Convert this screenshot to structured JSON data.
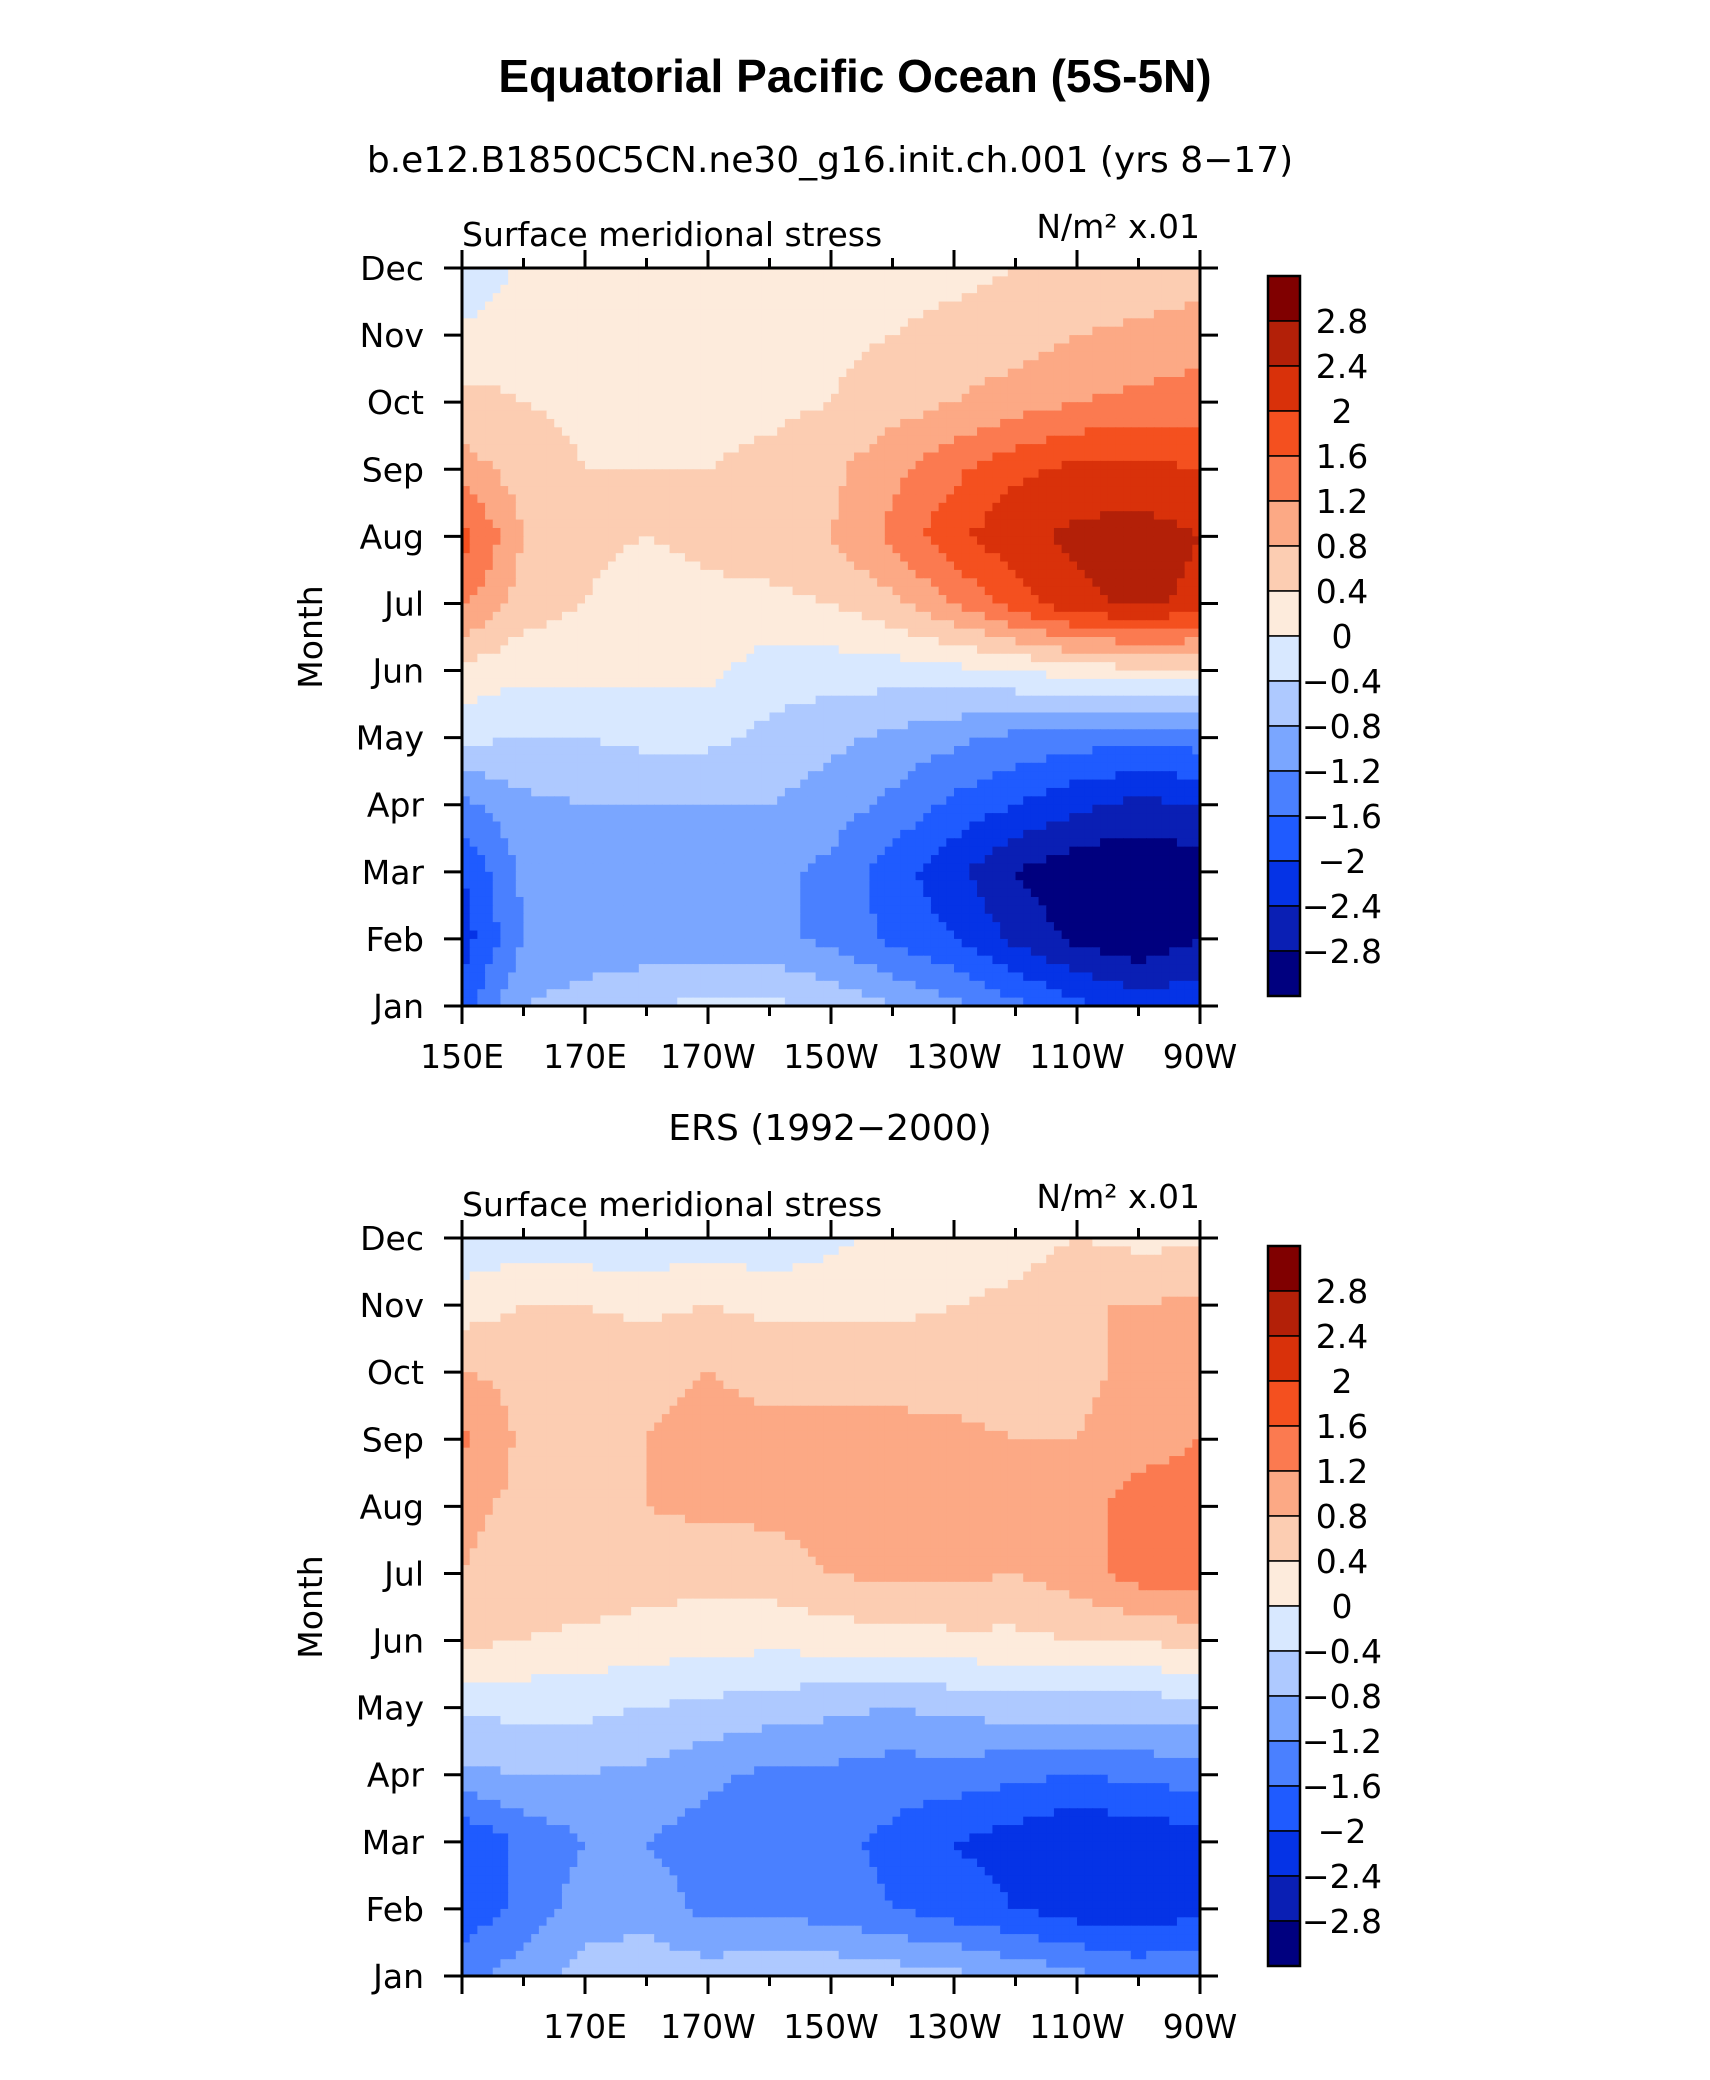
{
  "figure": {
    "title": "Equatorial Pacific Ocean (5S-5N)",
    "model_subtitle": "b.e12.B1850C5CN.ne30_g16.init.ch.001 (yrs 8−17)",
    "obs_subtitle": "ERS (1992−2000)"
  },
  "chart_data": [
    {
      "type": "heatmap",
      "title": "b.e12.B1850C5CN.ne30_g16.init.ch.001 (yrs 8−17)",
      "left_label": "Surface meridional stress",
      "units_label": "N/m² x.01",
      "ylabel": "Month",
      "yticks": [
        "Jan",
        "Feb",
        "Mar",
        "Apr",
        "May",
        "Jun",
        "Jul",
        "Aug",
        "Sep",
        "Oct",
        "Nov",
        "Dec"
      ],
      "xticks": [
        "150E",
        "170E",
        "170W",
        "150W",
        "130W",
        "110W",
        "90W"
      ],
      "xlim_deg_east": [
        150,
        270
      ],
      "levels": [
        -2.8,
        -2.4,
        -2,
        -1.6,
        -1.2,
        -0.8,
        -0.4,
        0,
        0.4,
        0.8,
        1.2,
        1.6,
        2,
        2.4,
        2.8
      ],
      "colorbar_labels": [
        "2.8",
        "2.4",
        "2",
        "1.6",
        "1.2",
        "0.8",
        "0.4",
        "0",
        "−0.4",
        "−0.8",
        "−1.2",
        "−1.6",
        "−2",
        "−2.4",
        "−2.8"
      ],
      "colors": [
        "#00007f",
        "#0a1fb4",
        "#0533e6",
        "#1f5bff",
        "#4a80ff",
        "#7aa6ff",
        "#aec9ff",
        "#d8e8ff",
        "#fdebdc",
        "#fccdb2",
        "#fca985",
        "#fb7a50",
        "#f4501f",
        "#d9310a",
        "#b32008",
        "#800000"
      ],
      "lon": [
        150,
        160,
        170,
        180,
        190,
        200,
        210,
        220,
        230,
        240,
        250,
        260,
        270
      ],
      "month": [
        1,
        2,
        3,
        4,
        5,
        6,
        7,
        8,
        9,
        10,
        11,
        12
      ],
      "values": [
        [
          -1.8,
          -0.8,
          -0.6,
          -0.4,
          -0.3,
          -0.3,
          -0.5,
          -0.8,
          -1.1,
          -1.5,
          -1.9,
          -2.2,
          -2.1
        ],
        [
          -2.2,
          -1.2,
          -1.1,
          -1.1,
          -1.1,
          -1.1,
          -1.3,
          -1.7,
          -2.0,
          -2.5,
          -2.9,
          -3.1,
          -2.8
        ],
        [
          -2.0,
          -1.1,
          -1.0,
          -1.0,
          -1.0,
          -1.1,
          -1.3,
          -1.8,
          -2.3,
          -2.8,
          -3.1,
          -3.2,
          -3.0
        ],
        [
          -1.3,
          -0.9,
          -0.8,
          -0.8,
          -0.8,
          -0.8,
          -1.0,
          -1.3,
          -1.7,
          -2.0,
          -2.3,
          -2.5,
          -2.4
        ],
        [
          -0.3,
          -0.4,
          -0.4,
          -0.3,
          -0.3,
          -0.5,
          -0.7,
          -0.9,
          -1.1,
          -1.3,
          -1.4,
          -1.5,
          -1.4
        ],
        [
          0.3,
          0.1,
          0.1,
          0.1,
          0.1,
          -0.2,
          -0.2,
          -0.2,
          -0.1,
          0.0,
          0.2,
          0.3,
          0.3
        ],
        [
          1.3,
          0.6,
          0.4,
          0.2,
          0.3,
          0.3,
          0.4,
          0.7,
          1.2,
          1.8,
          2.3,
          2.5,
          2.3
        ],
        [
          1.8,
          0.8,
          0.5,
          0.4,
          0.5,
          0.6,
          0.8,
          1.3,
          1.9,
          2.3,
          2.5,
          2.6,
          2.4
        ],
        [
          1.0,
          0.6,
          0.4,
          0.4,
          0.4,
          0.5,
          0.7,
          1.1,
          1.5,
          1.9,
          2.1,
          2.1,
          2.0
        ],
        [
          0.5,
          0.4,
          0.3,
          0.3,
          0.3,
          0.3,
          0.4,
          0.6,
          0.8,
          1.0,
          1.2,
          1.3,
          1.4
        ],
        [
          0.1,
          0.3,
          0.3,
          0.3,
          0.3,
          0.3,
          0.3,
          0.4,
          0.5,
          0.6,
          0.8,
          0.9,
          1.0
        ],
        [
          -0.4,
          0.1,
          0.2,
          0.2,
          0.2,
          0.3,
          0.3,
          0.3,
          0.3,
          0.4,
          0.5,
          0.5,
          0.6
        ]
      ]
    },
    {
      "type": "heatmap",
      "title": "ERS (1992−2000)",
      "left_label": "Surface meridional stress",
      "units_label": "N/m² x.01",
      "ylabel": "Month",
      "yticks": [
        "Jan",
        "Feb",
        "Mar",
        "Apr",
        "May",
        "Jun",
        "Jul",
        "Aug",
        "Sep",
        "Oct",
        "Nov",
        "Dec"
      ],
      "xticks": [
        "170E",
        "170W",
        "150W",
        "130W",
        "110W",
        "90W"
      ],
      "xlim_deg_east": [
        150,
        270
      ],
      "levels": [
        -2.8,
        -2.4,
        -2,
        -1.6,
        -1.2,
        -0.8,
        -0.4,
        0,
        0.4,
        0.8,
        1.2,
        1.6,
        2,
        2.4,
        2.8
      ],
      "colorbar_labels": [
        "2.8",
        "2.4",
        "2",
        "1.6",
        "1.2",
        "0.8",
        "0.4",
        "0",
        "−0.4",
        "−0.8",
        "−1.2",
        "−1.6",
        "−2",
        "−2.4",
        "−2.8"
      ],
      "colors": [
        "#00007f",
        "#0a1fb4",
        "#0533e6",
        "#1f5bff",
        "#4a80ff",
        "#7aa6ff",
        "#aec9ff",
        "#d8e8ff",
        "#fdebdc",
        "#fccdb2",
        "#fca985",
        "#fb7a50",
        "#f4501f",
        "#d9310a",
        "#b32008",
        "#800000"
      ],
      "lon": [
        150,
        160,
        170,
        180,
        190,
        200,
        210,
        220,
        230,
        240,
        250,
        260,
        270
      ],
      "month": [
        1,
        2,
        3,
        4,
        5,
        6,
        7,
        8,
        9,
        10,
        11,
        12
      ],
      "values": [
        [
          -1.3,
          -1.0,
          -0.6,
          -0.5,
          -0.6,
          -0.5,
          -0.5,
          -0.6,
          -0.7,
          -0.9,
          -1.1,
          -1.3,
          -1.2
        ],
        [
          -1.9,
          -1.5,
          -1.0,
          -1.0,
          -1.3,
          -1.3,
          -1.4,
          -1.6,
          -1.8,
          -2.0,
          -2.2,
          -2.3,
          -2.1
        ],
        [
          -2.0,
          -1.5,
          -1.2,
          -1.2,
          -1.4,
          -1.4,
          -1.5,
          -1.7,
          -2.0,
          -2.2,
          -2.4,
          -2.3,
          -2.2
        ],
        [
          -0.9,
          -0.8,
          -0.8,
          -0.9,
          -1.1,
          -1.3,
          -1.3,
          -1.4,
          -1.4,
          -1.5,
          -1.6,
          -1.5,
          -1.4
        ],
        [
          -0.3,
          -0.3,
          -0.3,
          -0.4,
          -0.5,
          -0.6,
          -0.7,
          -0.8,
          -0.7,
          -0.6,
          -0.6,
          -0.6,
          -0.6
        ],
        [
          0.5,
          0.4,
          0.3,
          0.2,
          0.2,
          0.1,
          0.2,
          0.2,
          0.3,
          0.3,
          0.4,
          0.4,
          0.6
        ],
        [
          0.8,
          0.6,
          0.7,
          0.6,
          0.5,
          0.6,
          0.8,
          0.9,
          0.9,
          0.8,
          1.0,
          1.4,
          1.4
        ],
        [
          0.9,
          0.7,
          0.7,
          0.8,
          0.9,
          0.9,
          1.0,
          1.0,
          0.9,
          0.9,
          1.0,
          1.4,
          1.5
        ],
        [
          1.3,
          0.7,
          0.6,
          0.8,
          0.9,
          0.9,
          0.9,
          0.9,
          0.9,
          0.8,
          0.8,
          1.0,
          1.2
        ],
        [
          0.8,
          0.7,
          0.6,
          0.7,
          0.8,
          0.7,
          0.7,
          0.7,
          0.6,
          0.6,
          0.7,
          0.9,
          1.2
        ],
        [
          0.2,
          0.4,
          0.4,
          0.3,
          0.4,
          0.3,
          0.3,
          0.3,
          0.4,
          0.5,
          0.8,
          0.8,
          0.9
        ],
        [
          -0.3,
          -0.2,
          -0.3,
          -0.3,
          -0.2,
          -0.3,
          -0.1,
          0.1,
          0.1,
          0.2,
          0.4,
          0.3,
          0.3
        ]
      ]
    }
  ]
}
